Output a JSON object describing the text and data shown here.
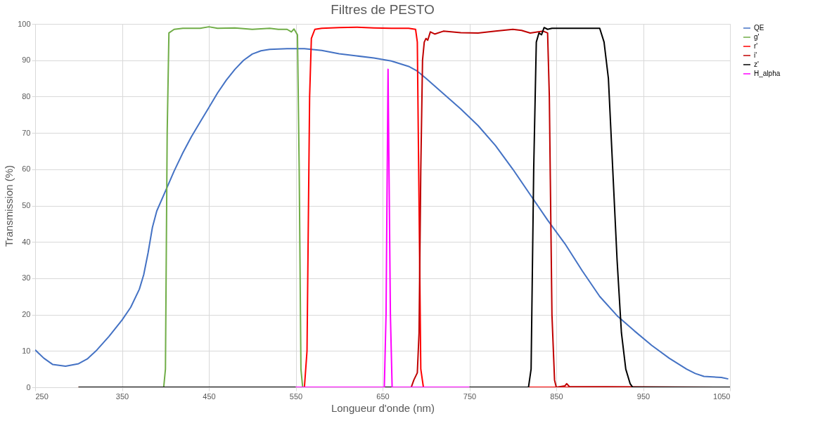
{
  "chart_data": {
    "type": "line",
    "title": "Filtres de PESTO",
    "xlabel": "Longueur d'onde (nm)",
    "ylabel": "Transmission (%)",
    "xlim": [
      250,
      1050
    ],
    "xticks": [
      250,
      350,
      450,
      550,
      650,
      750,
      850,
      950,
      1050
    ],
    "ylim": [
      0,
      100
    ],
    "yticks": [
      0,
      10,
      20,
      30,
      40,
      50,
      60,
      70,
      80,
      90,
      100
    ],
    "grid": true,
    "legend": "top right",
    "marker": "none",
    "line_style": "solid",
    "series": [
      {
        "name": "QE",
        "color": "#4472c4",
        "x": [
          250,
          260,
          270,
          285,
          300,
          310,
          320,
          335,
          350,
          360,
          370,
          375,
          380,
          385,
          390,
          400,
          410,
          420,
          430,
          440,
          450,
          460,
          470,
          480,
          490,
          500,
          510,
          520,
          540,
          560,
          580,
          600,
          620,
          640,
          660,
          680,
          690,
          700,
          720,
          740,
          760,
          780,
          800,
          820,
          840,
          860,
          880,
          900,
          920,
          940,
          960,
          980,
          1000,
          1010,
          1020,
          1040,
          1048
        ],
        "values": [
          10.3,
          8,
          6.3,
          5.8,
          6.5,
          7.8,
          10,
          14,
          18.5,
          22,
          27,
          31,
          37,
          44,
          48.5,
          54,
          59.5,
          64.5,
          69,
          73,
          77,
          81,
          84.5,
          87.5,
          90,
          91.7,
          92.6,
          93,
          93.2,
          93.2,
          92.7,
          91.8,
          91.2,
          90.6,
          89.8,
          88.3,
          87,
          85,
          80.8,
          76.6,
          72,
          66.5,
          60,
          53,
          46,
          39.5,
          32,
          25,
          19.7,
          15.5,
          11.5,
          8,
          5,
          3.8,
          3,
          2.7,
          2.3
        ]
      },
      {
        "name": "g'",
        "color": "#70ad47",
        "x": [
          300,
          398,
          400,
          402,
          404,
          410,
          420,
          440,
          450,
          460,
          480,
          500,
          520,
          530,
          540,
          545,
          548,
          552,
          554,
          556,
          558,
          1050
        ],
        "values": [
          0,
          0,
          5,
          70,
          97.5,
          98.5,
          98.8,
          98.8,
          99.2,
          98.8,
          98.9,
          98.5,
          98.8,
          98.5,
          98.5,
          97.8,
          98.6,
          97,
          60,
          5,
          0,
          0
        ]
      },
      {
        "name": "r'",
        "color": "#ff0000",
        "x": [
          300,
          560,
          563,
          566,
          568,
          572,
          580,
          600,
          620,
          640,
          660,
          680,
          688,
          690,
          692,
          694,
          697,
          1050
        ],
        "values": [
          0,
          0,
          10,
          80,
          96,
          98.5,
          98.8,
          99,
          99.1,
          98.9,
          98.8,
          98.8,
          98.5,
          95,
          50,
          5,
          0,
          0
        ]
      },
      {
        "name": "i'",
        "color": "#c00000",
        "x": [
          300,
          683,
          686,
          690,
          692,
          694,
          696,
          698,
          700,
          702,
          705,
          710,
          720,
          740,
          760,
          780,
          800,
          810,
          820,
          835,
          840,
          842,
          845,
          848,
          850,
          860,
          862,
          865,
          1050
        ],
        "values": [
          0,
          0,
          2,
          4,
          15,
          60,
          90,
          95,
          96,
          95.5,
          97.8,
          97.2,
          98,
          97.6,
          97.5,
          98,
          98.5,
          98.2,
          97.5,
          98,
          97.5,
          80,
          20,
          2,
          0,
          0.4,
          1,
          0.2,
          0
        ]
      },
      {
        "name": "z'",
        "color": "#000000",
        "x": [
          300,
          818,
          821,
          824,
          827,
          830,
          833,
          836,
          840,
          845,
          880,
          900,
          905,
          910,
          915,
          920,
          925,
          930,
          935,
          938,
          1050
        ],
        "values": [
          0,
          0,
          5,
          60,
          95,
          97.5,
          97,
          99,
          98.5,
          98.8,
          98.8,
          98.8,
          95,
          85,
          60,
          35,
          15,
          5,
          1,
          0,
          0
        ]
      },
      {
        "name": "H_alpha",
        "color": "#ff00ff",
        "x": [
          550,
          652,
          654,
          656.3,
          659,
          661,
          750
        ],
        "values": [
          0,
          0,
          20,
          87.5,
          20,
          0,
          0
        ]
      }
    ]
  }
}
